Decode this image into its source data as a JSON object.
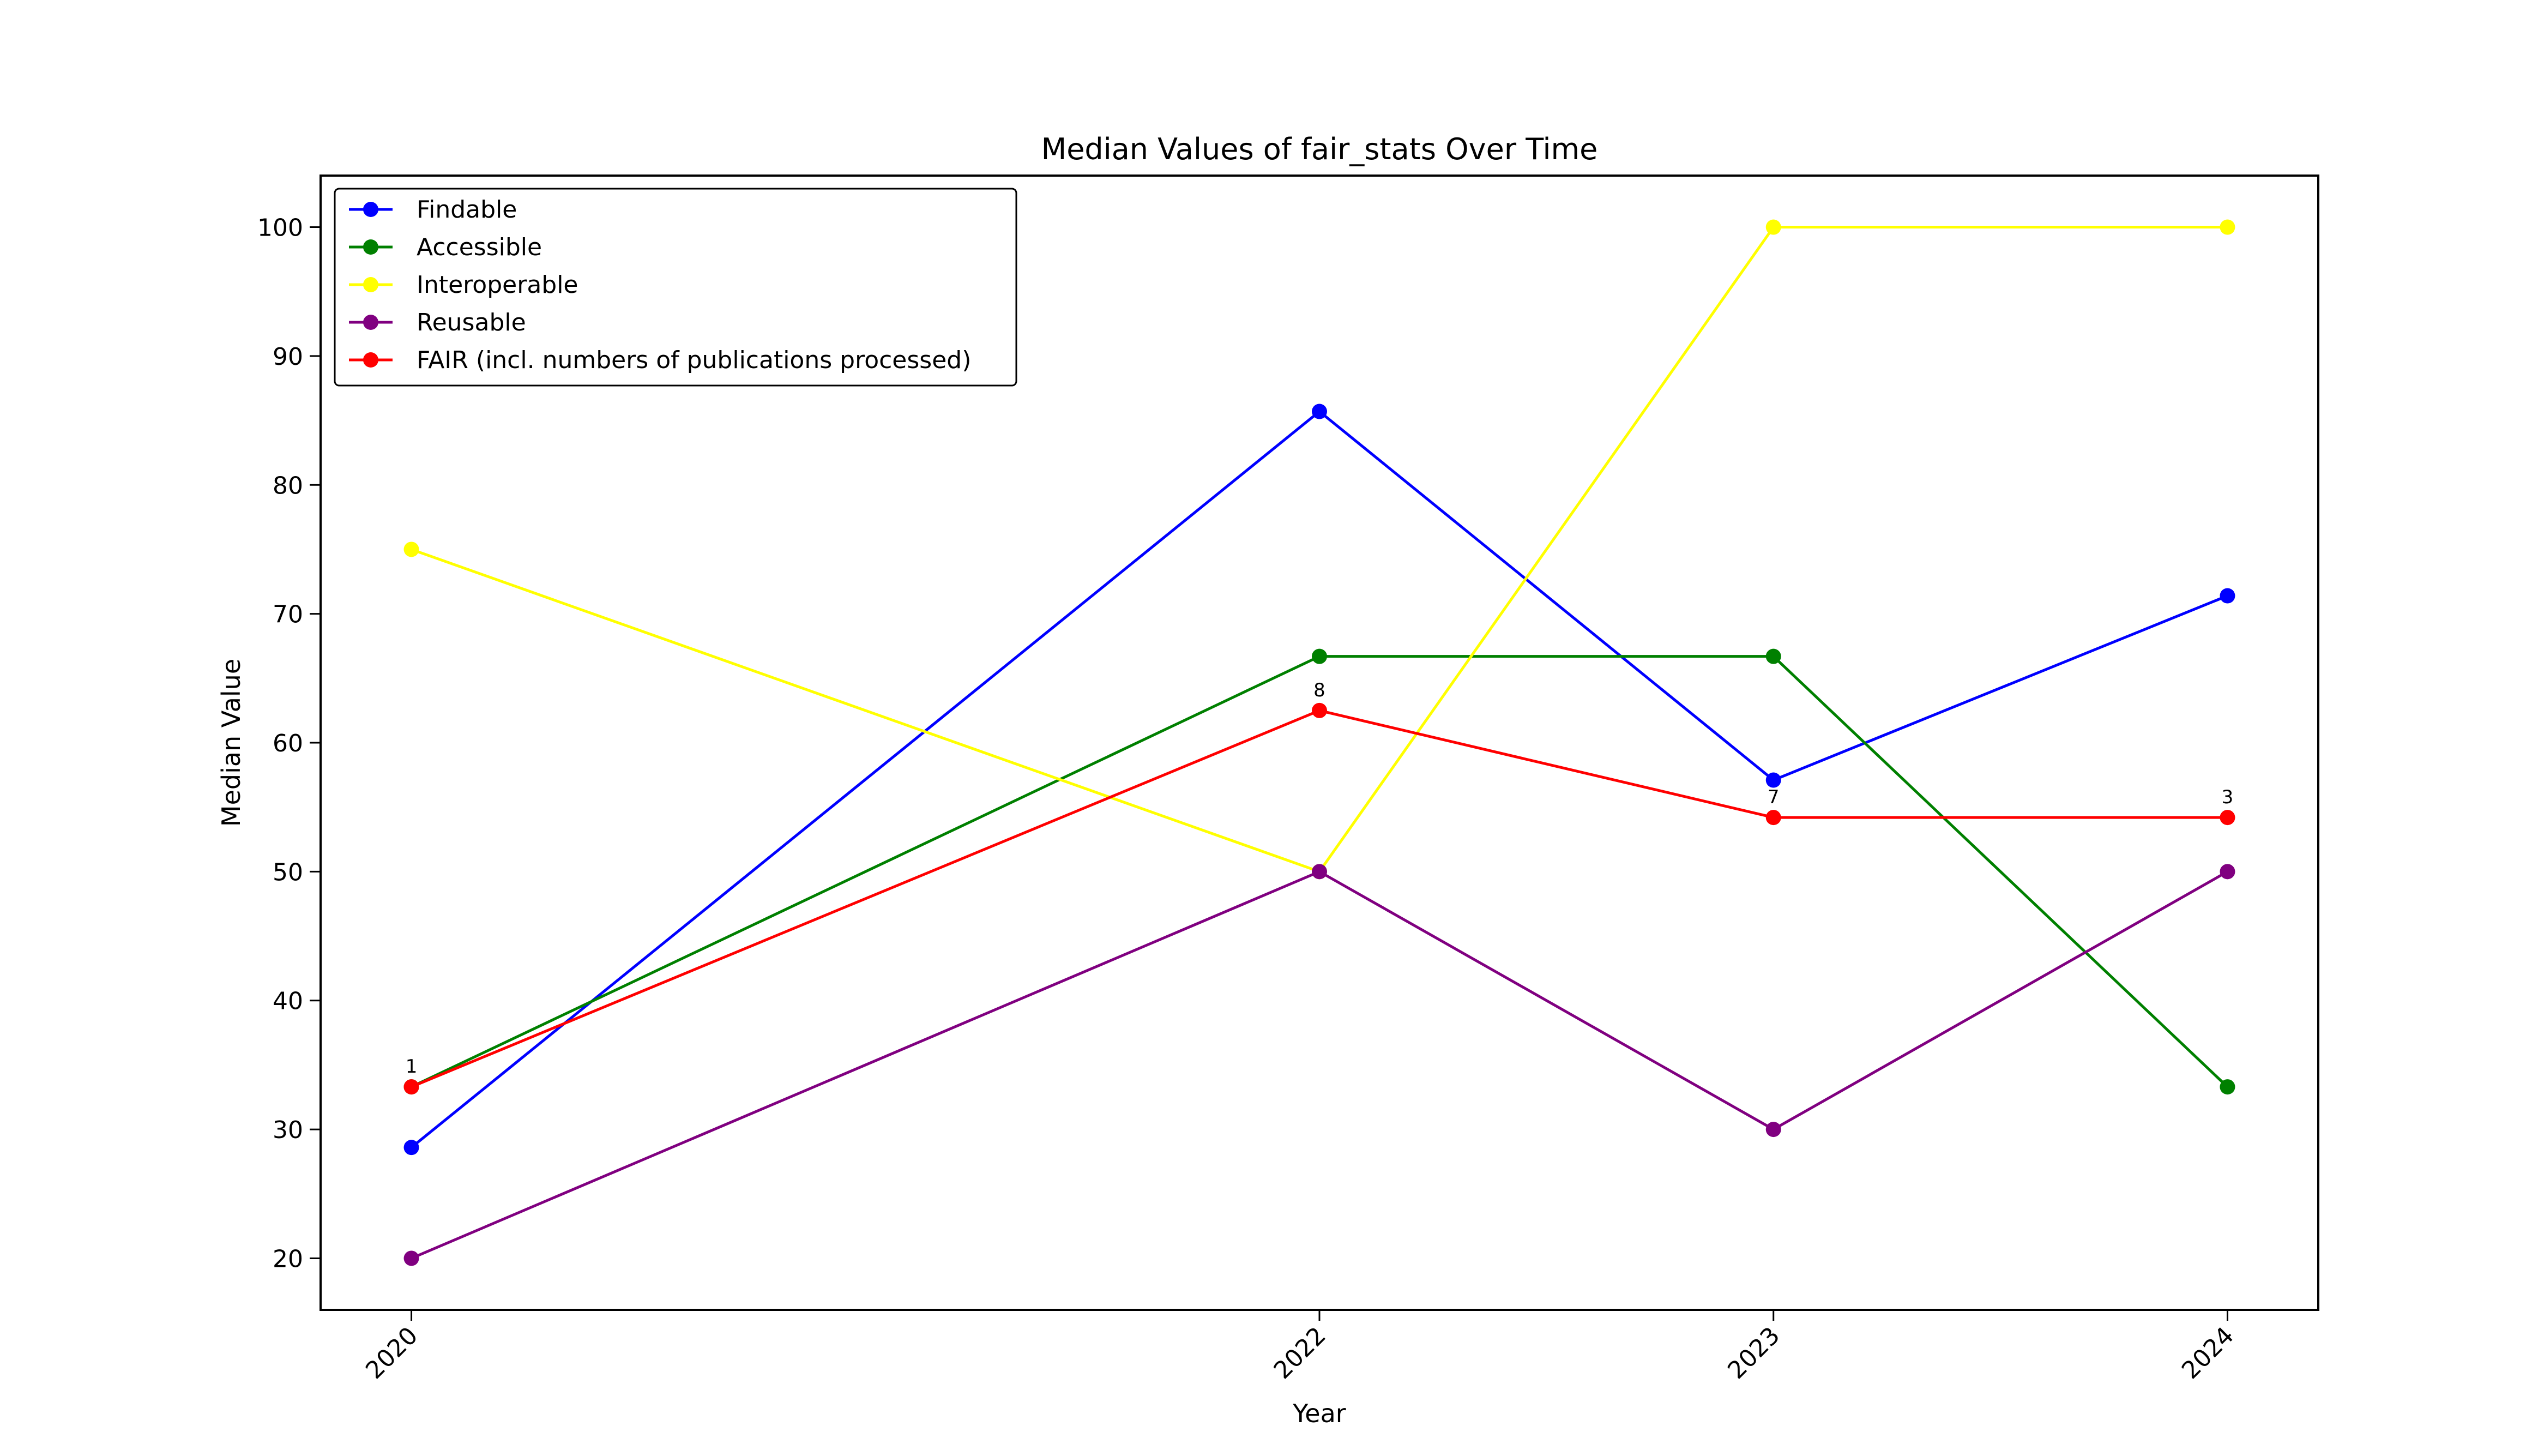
{
  "chart_data": {
    "type": "line",
    "title": "Median Values of fair_stats Over Time",
    "xlabel": "Year",
    "ylabel": "Median Value",
    "categories": [
      "2020",
      "2022",
      "2023",
      "2024"
    ],
    "x": [
      2020,
      2022,
      2023,
      2024
    ],
    "xlim": [
      2019.8,
      2024.2
    ],
    "ylim": [
      16,
      104
    ],
    "yticks": [
      20,
      30,
      40,
      50,
      60,
      70,
      80,
      90,
      100
    ],
    "grid": false,
    "legend_position": "top-left",
    "series": [
      {
        "name": "Findable",
        "color": "#0000ff",
        "values": [
          28.6,
          85.7,
          57.1,
          71.4
        ]
      },
      {
        "name": "Accessible",
        "color": "#008000",
        "values": [
          33.3,
          66.7,
          66.7,
          33.3
        ]
      },
      {
        "name": "Interoperable",
        "color": "#ffff00",
        "values": [
          75,
          50,
          100,
          100
        ]
      },
      {
        "name": "Reusable",
        "color": "#800080",
        "values": [
          20,
          50,
          30,
          50
        ]
      },
      {
        "name": "FAIR (incl. numbers of publications processed)",
        "color": "#ff0000",
        "values": [
          33.3,
          62.5,
          54.2,
          54.2
        ]
      }
    ],
    "annotations": [
      {
        "x": 2020,
        "y": 33.3,
        "text": "1"
      },
      {
        "x": 2022,
        "y": 62.5,
        "text": "8"
      },
      {
        "x": 2023,
        "y": 54.2,
        "text": "7"
      },
      {
        "x": 2024,
        "y": 54.2,
        "text": "3"
      }
    ]
  }
}
